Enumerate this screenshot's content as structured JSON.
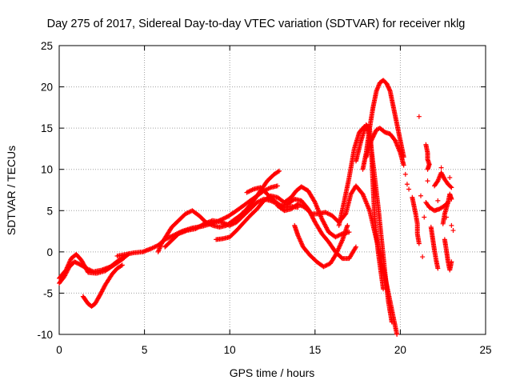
{
  "chart_data": {
    "type": "scatter",
    "title": "Day 275 of 2017, Sidereal Day-to-day VTEC variation (SDTVAR) for receiver nklg",
    "xlabel": "GPS time / hours",
    "ylabel": "SDTVAR / TECUs",
    "xlim": [
      0,
      25
    ],
    "ylim": [
      -10,
      25
    ],
    "xticks": [
      0,
      5,
      10,
      15,
      20,
      25
    ],
    "yticks": [
      -10,
      -5,
      0,
      5,
      10,
      15,
      20,
      25
    ],
    "xtick_labels": [
      "0",
      "5",
      "10",
      "15",
      "20",
      "25"
    ],
    "ytick_labels": [
      "-10",
      "-5",
      "0",
      "5",
      "10",
      "15",
      "20",
      "25"
    ],
    "grid": true,
    "marker": "+",
    "series_color": "#ff0000",
    "traces": [
      [
        [
          0.0,
          -3.8
        ],
        [
          0.3,
          -3.0
        ],
        [
          0.6,
          -1.8
        ],
        [
          0.9,
          -1.2
        ],
        [
          1.2,
          -1.5
        ],
        [
          1.6,
          -2.0
        ],
        [
          2.0,
          -2.4
        ],
        [
          2.5,
          -2.2
        ],
        [
          3.0,
          -1.8
        ],
        [
          3.5,
          -1.0
        ],
        [
          3.9,
          -0.5
        ]
      ],
      [
        [
          0.0,
          -3.2
        ],
        [
          0.4,
          -2.2
        ],
        [
          0.7,
          -0.8
        ],
        [
          1.0,
          -0.3
        ],
        [
          1.3,
          -1.0
        ],
        [
          1.7,
          -2.5
        ],
        [
          2.2,
          -2.6
        ],
        [
          2.7,
          -2.3
        ],
        [
          3.2,
          -1.6
        ],
        [
          3.7,
          -0.9
        ],
        [
          4.1,
          -0.2
        ]
      ],
      [
        [
          1.4,
          -5.4
        ],
        [
          1.7,
          -6.3
        ],
        [
          1.9,
          -6.6
        ],
        [
          2.1,
          -6.3
        ],
        [
          2.4,
          -5.2
        ],
        [
          2.7,
          -4.0
        ],
        [
          3.1,
          -2.7
        ],
        [
          3.4,
          -2.0
        ],
        [
          3.7,
          -1.6
        ]
      ],
      [
        [
          3.4,
          -0.5
        ],
        [
          3.9,
          -0.3
        ],
        [
          4.4,
          -0.1
        ],
        [
          4.9,
          0.0
        ],
        [
          5.4,
          0.4
        ],
        [
          5.8,
          0.8
        ],
        [
          6.2,
          1.5
        ],
        [
          6.7,
          2.0
        ],
        [
          7.2,
          2.5
        ],
        [
          7.8,
          2.9
        ],
        [
          8.4,
          3.1
        ],
        [
          8.9,
          3.4
        ],
        [
          9.4,
          3.8
        ],
        [
          9.9,
          4.3
        ],
        [
          10.4,
          5.0
        ],
        [
          10.8,
          5.6
        ],
        [
          11.2,
          6.2
        ],
        [
          11.6,
          6.8
        ],
        [
          12.0,
          7.4
        ],
        [
          12.4,
          7.8
        ],
        [
          12.8,
          8.0
        ]
      ],
      [
        [
          5.8,
          0.0
        ],
        [
          6.0,
          1.0
        ],
        [
          6.3,
          2.0
        ],
        [
          6.6,
          3.0
        ],
        [
          7.0,
          3.8
        ],
        [
          7.4,
          4.6
        ],
        [
          7.8,
          5.0
        ],
        [
          8.2,
          4.4
        ],
        [
          8.6,
          3.6
        ],
        [
          9.0,
          3.2
        ],
        [
          9.4,
          3.0
        ],
        [
          9.8,
          3.2
        ],
        [
          10.2,
          3.8
        ],
        [
          10.6,
          4.4
        ],
        [
          11.0,
          5.2
        ],
        [
          11.4,
          6.2
        ],
        [
          11.8,
          7.4
        ],
        [
          12.2,
          8.6
        ],
        [
          12.6,
          9.4
        ],
        [
          12.9,
          9.8
        ]
      ],
      [
        [
          6.2,
          0.6
        ],
        [
          6.6,
          1.4
        ],
        [
          7.0,
          2.2
        ],
        [
          7.5,
          2.6
        ],
        [
          8.0,
          2.8
        ],
        [
          8.5,
          3.4
        ],
        [
          9.0,
          3.8
        ],
        [
          9.5,
          3.6
        ],
        [
          10.0,
          3.2
        ],
        [
          10.4,
          3.6
        ],
        [
          10.8,
          4.4
        ],
        [
          11.2,
          5.2
        ],
        [
          11.6,
          6.0
        ],
        [
          12.0,
          6.4
        ],
        [
          12.4,
          6.2
        ],
        [
          12.8,
          5.8
        ],
        [
          13.2,
          5.4
        ],
        [
          13.6,
          5.5
        ],
        [
          14.0,
          5.4
        ]
      ],
      [
        [
          9.2,
          1.5
        ],
        [
          9.6,
          1.6
        ],
        [
          10.0,
          1.8
        ],
        [
          10.4,
          2.6
        ],
        [
          10.8,
          3.5
        ],
        [
          11.2,
          4.4
        ],
        [
          11.6,
          5.2
        ],
        [
          12.0,
          6.2
        ],
        [
          12.4,
          6.8
        ],
        [
          12.8,
          6.6
        ],
        [
          13.2,
          6.0
        ],
        [
          13.6,
          6.6
        ],
        [
          13.9,
          7.4
        ],
        [
          14.2,
          7.9
        ],
        [
          14.6,
          7.4
        ],
        [
          15.0,
          6.0
        ],
        [
          15.4,
          4.0
        ],
        [
          15.8,
          2.4
        ],
        [
          16.2,
          1.8
        ],
        [
          16.6,
          2.2
        ],
        [
          17.0,
          2.4
        ]
      ],
      [
        [
          11.0,
          7.2
        ],
        [
          11.4,
          7.6
        ],
        [
          11.8,
          7.8
        ],
        [
          12.2,
          7.0
        ],
        [
          12.6,
          6.2
        ],
        [
          13.0,
          5.6
        ],
        [
          13.4,
          5.8
        ],
        [
          13.8,
          6.4
        ],
        [
          14.2,
          6.2
        ],
        [
          14.6,
          5.2
        ],
        [
          15.0,
          3.6
        ],
        [
          15.4,
          2.2
        ],
        [
          15.8,
          1.2
        ],
        [
          16.2,
          0.0
        ],
        [
          16.6,
          -0.8
        ],
        [
          17.0,
          -0.8
        ],
        [
          17.4,
          0.6
        ]
      ],
      [
        [
          13.8,
          3.2
        ],
        [
          14.0,
          2.0
        ],
        [
          14.3,
          0.6
        ],
        [
          14.7,
          -0.4
        ],
        [
          15.1,
          -1.2
        ],
        [
          15.5,
          -1.8
        ],
        [
          15.9,
          -1.4
        ],
        [
          16.2,
          -0.4
        ],
        [
          16.6,
          1.4
        ],
        [
          16.9,
          3.2
        ]
      ],
      [
        [
          12.8,
          5.6
        ],
        [
          13.2,
          5.0
        ],
        [
          13.6,
          5.2
        ],
        [
          14.0,
          5.8
        ],
        [
          14.4,
          5.4
        ],
        [
          14.8,
          4.6
        ],
        [
          15.2,
          4.6
        ],
        [
          15.6,
          4.8
        ],
        [
          16.0,
          4.4
        ],
        [
          16.4,
          3.6
        ],
        [
          16.8,
          4.6
        ],
        [
          17.1,
          7.0
        ],
        [
          17.4,
          8.0
        ],
        [
          17.8,
          7.0
        ],
        [
          18.2,
          5.0
        ],
        [
          18.6,
          1.5
        ],
        [
          19.0,
          -2.0
        ],
        [
          19.4,
          -6.0
        ],
        [
          19.8,
          -10.0
        ]
      ],
      [
        [
          16.4,
          3.2
        ],
        [
          16.7,
          6.0
        ],
        [
          17.0,
          9.0
        ],
        [
          17.3,
          12.5
        ],
        [
          17.6,
          14.5
        ],
        [
          17.9,
          15.2
        ],
        [
          18.1,
          14.8
        ],
        [
          18.3,
          12.5
        ],
        [
          18.5,
          9.0
        ],
        [
          18.7,
          5.5
        ],
        [
          18.9,
          1.5
        ],
        [
          19.1,
          -2.5
        ],
        [
          19.3,
          -6.0
        ],
        [
          19.5,
          -8.5
        ]
      ],
      [
        [
          17.4,
          11.0
        ],
        [
          17.7,
          13.5
        ],
        [
          18.0,
          15.4
        ],
        [
          18.2,
          15.0
        ],
        [
          18.3,
          12.5
        ],
        [
          18.4,
          8.0
        ],
        [
          18.5,
          4.0
        ],
        [
          18.7,
          0.0
        ],
        [
          18.9,
          -3.0
        ],
        [
          19.0,
          -4.5
        ]
      ],
      [
        [
          17.8,
          10.0
        ],
        [
          18.0,
          12.0
        ],
        [
          18.2,
          15.0
        ],
        [
          18.4,
          17.5
        ],
        [
          18.6,
          19.5
        ],
        [
          18.8,
          20.5
        ],
        [
          19.0,
          20.8
        ],
        [
          19.2,
          20.4
        ],
        [
          19.4,
          19.5
        ],
        [
          19.6,
          17.5
        ],
        [
          19.8,
          15.5
        ],
        [
          20.0,
          13.5
        ],
        [
          20.2,
          11.5
        ]
      ],
      [
        [
          18.0,
          11.5
        ],
        [
          18.3,
          13.5
        ],
        [
          18.6,
          14.8
        ],
        [
          18.8,
          15.0
        ],
        [
          19.1,
          14.5
        ],
        [
          19.4,
          14.3
        ],
        [
          19.7,
          13.5
        ],
        [
          20.0,
          12.0
        ],
        [
          20.2,
          10.5
        ]
      ],
      [
        [
          20.7,
          6.6
        ],
        [
          20.8,
          5.6
        ],
        [
          20.9,
          4.6
        ],
        [
          21.0,
          3.4
        ],
        [
          21.0,
          2.2
        ],
        [
          21.1,
          1.0
        ]
      ],
      [
        [
          21.5,
          13.0
        ],
        [
          21.6,
          12.0
        ],
        [
          21.6,
          11.2
        ],
        [
          21.7,
          10.6
        ],
        [
          21.6,
          10.0
        ]
      ],
      [
        [
          21.5,
          6.0
        ],
        [
          21.7,
          5.4
        ],
        [
          22.0,
          5.0
        ],
        [
          22.3,
          5.2
        ],
        [
          22.6,
          5.6
        ],
        [
          22.8,
          6.0
        ]
      ],
      [
        [
          21.8,
          3.0
        ],
        [
          21.9,
          1.6
        ],
        [
          22.0,
          0.2
        ],
        [
          22.1,
          -1.0
        ],
        [
          22.2,
          -2.0
        ]
      ],
      [
        [
          22.0,
          8.0
        ],
        [
          22.2,
          8.6
        ],
        [
          22.4,
          9.6
        ],
        [
          22.6,
          8.8
        ],
        [
          22.8,
          8.2
        ],
        [
          23.0,
          7.8
        ]
      ],
      [
        [
          22.5,
          3.4
        ],
        [
          22.6,
          4.6
        ],
        [
          22.8,
          6.0
        ],
        [
          22.9,
          7.0
        ],
        [
          23.0,
          6.4
        ]
      ],
      [
        [
          22.6,
          1.5
        ],
        [
          22.7,
          0.2
        ],
        [
          22.8,
          -1.2
        ],
        [
          22.9,
          -2.2
        ],
        [
          23.0,
          -1.2
        ]
      ]
    ],
    "points": [
      [
        21.1,
        16.4
      ],
      [
        20.4,
        8.2
      ],
      [
        20.5,
        7.6
      ],
      [
        20.3,
        9.4
      ],
      [
        21.6,
        8.6
      ],
      [
        21.2,
        6.8
      ],
      [
        21.4,
        4.2
      ],
      [
        22.4,
        10.2
      ],
      [
        22.2,
        6.2
      ],
      [
        22.7,
        4.2
      ],
      [
        23.0,
        3.2
      ],
      [
        23.1,
        2.6
      ],
      [
        22.9,
        9.0
      ],
      [
        21.3,
        -0.6
      ]
    ]
  }
}
